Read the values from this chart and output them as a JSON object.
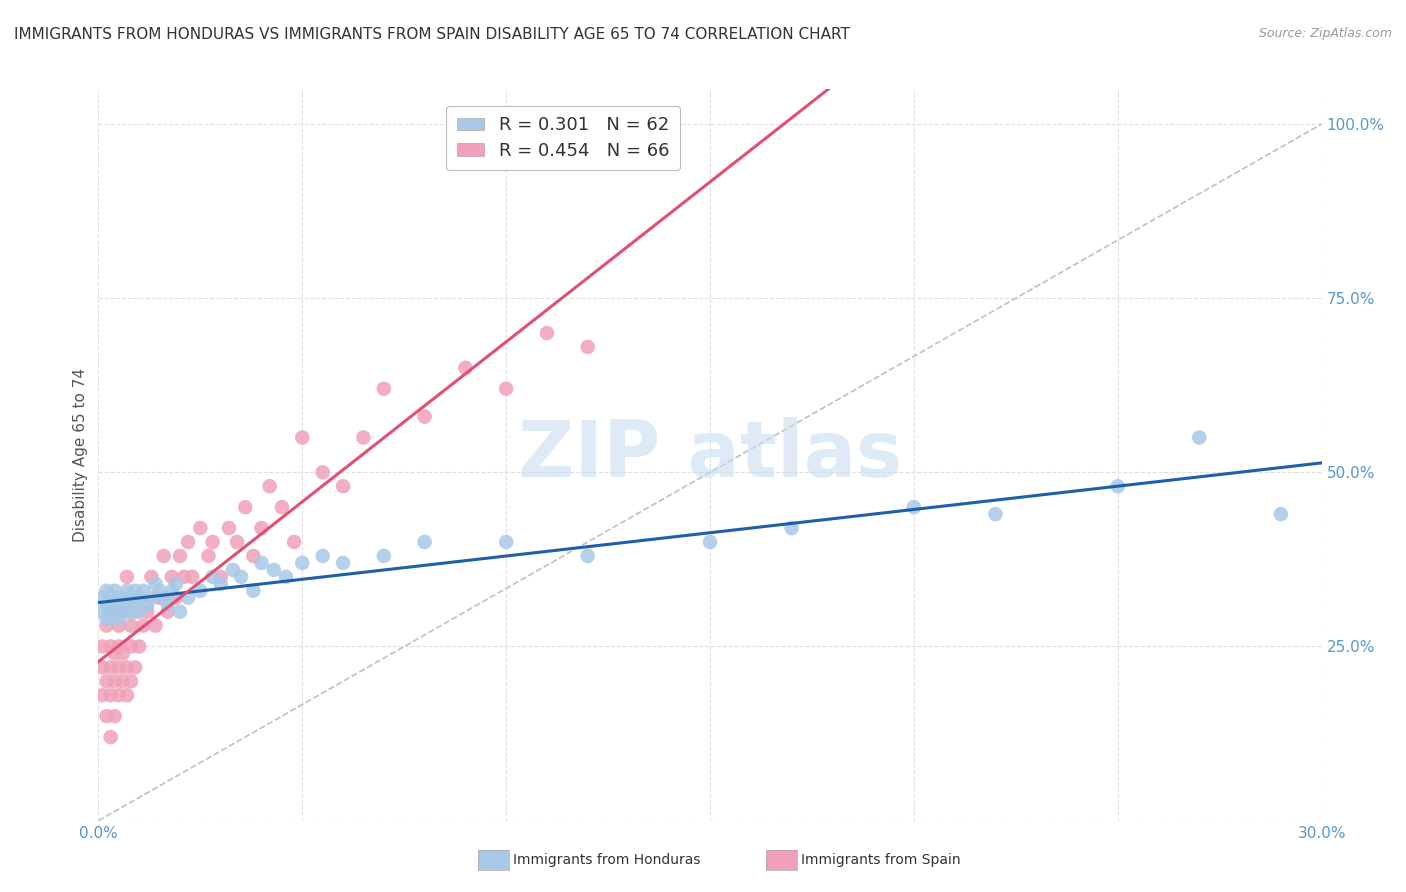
{
  "title": "IMMIGRANTS FROM HONDURAS VS IMMIGRANTS FROM SPAIN DISABILITY AGE 65 TO 74 CORRELATION CHART",
  "source_text": "Source: ZipAtlas.com",
  "ylabel": "Disability Age 65 to 74",
  "xlim": [
    0.0,
    0.3
  ],
  "ylim": [
    0.0,
    1.05
  ],
  "xticks": [
    0.0,
    0.05,
    0.1,
    0.15,
    0.2,
    0.25,
    0.3
  ],
  "xtick_labels": [
    "0.0%",
    "",
    "",
    "",
    "",
    "",
    "30.0%"
  ],
  "yticks": [
    0.0,
    0.25,
    0.5,
    0.75,
    1.0
  ],
  "ytick_labels_right": [
    "",
    "25.0%",
    "50.0%",
    "75.0%",
    "100.0%"
  ],
  "honduras_R": 0.301,
  "honduras_N": 62,
  "spain_R": 0.454,
  "spain_N": 66,
  "honduras_color": "#A8C8E8",
  "spain_color": "#F0A0B8",
  "honduras_line_color": "#1E5FA8",
  "spain_line_color": "#E05070",
  "diagonal_line_color": "#C0C0C0",
  "background_color": "#FFFFFF",
  "grid_color": "#E0E0E0",
  "title_fontsize": 11,
  "axis_label_fontsize": 11,
  "tick_fontsize": 11,
  "legend_fontsize": 13,
  "tick_color": "#5599CC",
  "honduras_x": [
    0.001,
    0.001,
    0.002,
    0.002,
    0.002,
    0.003,
    0.003,
    0.003,
    0.003,
    0.004,
    0.004,
    0.004,
    0.005,
    0.005,
    0.005,
    0.005,
    0.006,
    0.006,
    0.006,
    0.007,
    0.007,
    0.007,
    0.008,
    0.008,
    0.009,
    0.009,
    0.01,
    0.01,
    0.011,
    0.012,
    0.013,
    0.014,
    0.015,
    0.016,
    0.017,
    0.018,
    0.019,
    0.02,
    0.022,
    0.025,
    0.028,
    0.03,
    0.033,
    0.035,
    0.038,
    0.04,
    0.043,
    0.046,
    0.05,
    0.055,
    0.06,
    0.07,
    0.08,
    0.1,
    0.12,
    0.15,
    0.17,
    0.2,
    0.22,
    0.25,
    0.27,
    0.29
  ],
  "honduras_y": [
    0.3,
    0.32,
    0.31,
    0.29,
    0.33,
    0.3,
    0.32,
    0.31,
    0.29,
    0.3,
    0.33,
    0.31,
    0.3,
    0.32,
    0.29,
    0.31,
    0.3,
    0.32,
    0.31,
    0.3,
    0.33,
    0.31,
    0.3,
    0.32,
    0.31,
    0.33,
    0.3,
    0.32,
    0.33,
    0.31,
    0.32,
    0.34,
    0.33,
    0.32,
    0.31,
    0.33,
    0.34,
    0.3,
    0.32,
    0.33,
    0.35,
    0.34,
    0.36,
    0.35,
    0.33,
    0.37,
    0.36,
    0.35,
    0.37,
    0.38,
    0.37,
    0.38,
    0.4,
    0.4,
    0.38,
    0.4,
    0.42,
    0.45,
    0.44,
    0.48,
    0.55,
    0.44
  ],
  "spain_x": [
    0.001,
    0.001,
    0.001,
    0.002,
    0.002,
    0.002,
    0.003,
    0.003,
    0.003,
    0.003,
    0.003,
    0.004,
    0.004,
    0.004,
    0.005,
    0.005,
    0.005,
    0.005,
    0.006,
    0.006,
    0.006,
    0.007,
    0.007,
    0.007,
    0.008,
    0.008,
    0.008,
    0.009,
    0.009,
    0.01,
    0.01,
    0.011,
    0.012,
    0.013,
    0.014,
    0.015,
    0.016,
    0.017,
    0.018,
    0.019,
    0.02,
    0.021,
    0.022,
    0.023,
    0.025,
    0.027,
    0.028,
    0.03,
    0.032,
    0.034,
    0.036,
    0.038,
    0.04,
    0.042,
    0.045,
    0.048,
    0.05,
    0.055,
    0.06,
    0.065,
    0.07,
    0.08,
    0.09,
    0.1,
    0.11,
    0.12
  ],
  "spain_y": [
    0.18,
    0.22,
    0.25,
    0.15,
    0.2,
    0.28,
    0.12,
    0.18,
    0.22,
    0.25,
    0.3,
    0.2,
    0.24,
    0.15,
    0.22,
    0.18,
    0.25,
    0.28,
    0.2,
    0.24,
    0.3,
    0.18,
    0.22,
    0.35,
    0.25,
    0.2,
    0.28,
    0.22,
    0.3,
    0.25,
    0.32,
    0.28,
    0.3,
    0.35,
    0.28,
    0.32,
    0.38,
    0.3,
    0.35,
    0.32,
    0.38,
    0.35,
    0.4,
    0.35,
    0.42,
    0.38,
    0.4,
    0.35,
    0.42,
    0.4,
    0.45,
    0.38,
    0.42,
    0.48,
    0.45,
    0.4,
    0.55,
    0.5,
    0.48,
    0.55,
    0.62,
    0.58,
    0.65,
    0.62,
    0.7,
    0.68
  ]
}
